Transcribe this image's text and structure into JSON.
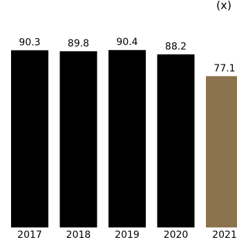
{
  "corner_label": "(x)",
  "colors": {
    "default_bar": "#000000",
    "highlight_bar": "#8c7350",
    "text": "#000000",
    "background": "#ffffff"
  },
  "chart_data": {
    "type": "bar",
    "title": "",
    "xlabel": "",
    "ylabel": "",
    "categories": [
      "2017",
      "2018",
      "2019",
      "2020",
      "2021"
    ],
    "values": [
      90.3,
      89.8,
      90.4,
      88.2,
      77.1
    ],
    "highlight_index": 4,
    "ylim": [
      0,
      100
    ],
    "grid": false,
    "legend": "none",
    "data_labels": true
  }
}
